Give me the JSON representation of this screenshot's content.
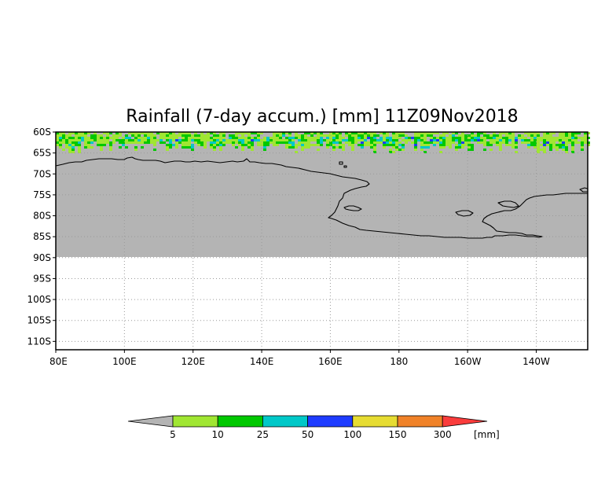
{
  "map": {
    "title": "Rainfall (7-day accum.) [mm] 11Z09Nov2018",
    "lat_labels": [
      "60S",
      "65S",
      "70S",
      "75S",
      "80S",
      "85S",
      "90S",
      "95S",
      "100S",
      "105S",
      "110S"
    ],
    "lon_labels": [
      "80E",
      "100E",
      "120E",
      "140E",
      "160E",
      "180",
      "160W",
      "140W"
    ],
    "lat_range": [
      -112,
      -60
    ],
    "lon_range": [
      80,
      235
    ],
    "data_extent_lat": [
      -90,
      -60
    ],
    "grid": true,
    "no_data_color": "#b4b4b4"
  },
  "colorbar": {
    "unit": "[mm]",
    "labels": [
      "5",
      "10",
      "25",
      "50",
      "100",
      "150",
      "300"
    ],
    "colors": [
      "#b4b4b4",
      "#a0e632",
      "#00c800",
      "#00c8c8",
      "#1e3cff",
      "#e6dc32",
      "#f08228",
      "#fa3c3c"
    ],
    "thresholds": [
      5,
      10,
      25,
      50,
      100,
      150,
      300
    ]
  },
  "chart_data": {
    "type": "heatmap",
    "title": "Rainfall (7-day accum.) [mm] 11Z09Nov2018",
    "x_ticks": [
      "80E",
      "100E",
      "120E",
      "140E",
      "160E",
      "180",
      "160W",
      "140W"
    ],
    "y_ticks": [
      "60S",
      "65S",
      "70S",
      "75S",
      "80S",
      "85S",
      "90S",
      "95S",
      "100S",
      "105S",
      "110S"
    ],
    "colorbar_thresholds_mm": [
      5,
      10,
      25,
      50,
      100,
      150,
      300
    ],
    "legend_placement": "bottom"
  }
}
